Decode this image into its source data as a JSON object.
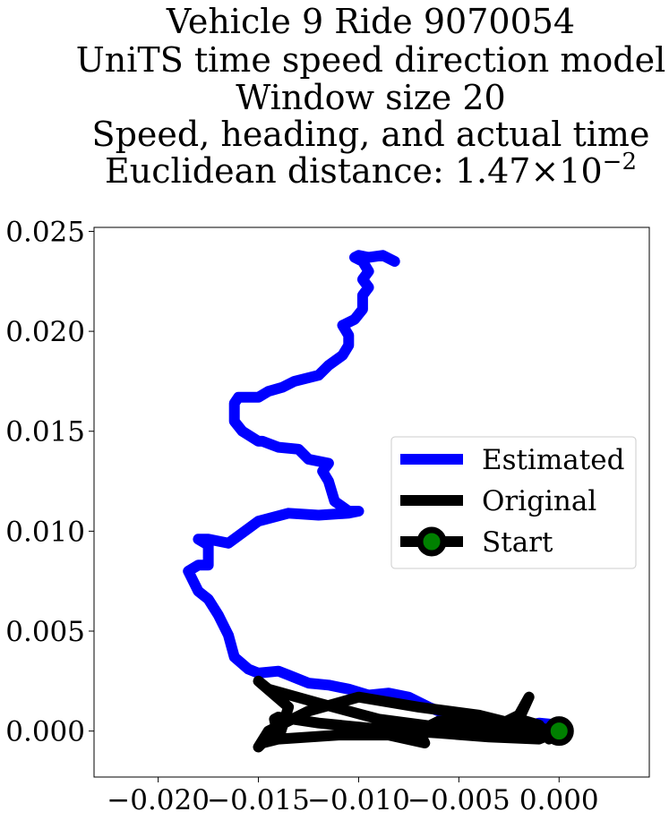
{
  "chart_data": {
    "type": "line",
    "title_lines": [
      "Vehicle 9 Ride 9070054",
      "UniTS time speed direction model",
      "Window size 20",
      "Speed, heading, and actual time"
    ],
    "title_distance": {
      "prefix": "Euclidean distance: ",
      "mantissa": "1.47",
      "times": "×",
      "base": "10",
      "exponent": "−2"
    },
    "xlabel": "",
    "ylabel": "",
    "xlim": [
      -0.0232,
      0.0045
    ],
    "ylim": [
      -0.0023,
      0.0252
    ],
    "x_ticks": [
      {
        "value": -0.02,
        "label": "−0.020"
      },
      {
        "value": -0.015,
        "label": "−0.015"
      },
      {
        "value": -0.01,
        "label": "−0.010"
      },
      {
        "value": -0.005,
        "label": "−0.005"
      },
      {
        "value": 0.0,
        "label": "0.000"
      }
    ],
    "y_ticks": [
      {
        "value": 0.0,
        "label": "0.000"
      },
      {
        "value": 0.005,
        "label": "0.005"
      },
      {
        "value": 0.01,
        "label": "0.010"
      },
      {
        "value": 0.015,
        "label": "0.015"
      },
      {
        "value": 0.02,
        "label": "0.020"
      },
      {
        "value": 0.025,
        "label": "0.025"
      }
    ],
    "grid": false,
    "legend_position": "center-right",
    "series": [
      {
        "name": "Estimated",
        "color": "#0000ff",
        "x": [
          0.0,
          -0.001,
          -0.002,
          -0.004,
          -0.0055,
          -0.0065,
          -0.0075,
          -0.0085,
          -0.0095,
          -0.0105,
          -0.0115,
          -0.0125,
          -0.0135,
          -0.014,
          -0.015,
          -0.0155,
          -0.0162,
          -0.0165,
          -0.017,
          -0.0175,
          -0.018,
          -0.0185,
          -0.018,
          -0.0175,
          -0.0175,
          -0.018,
          -0.0175,
          -0.0165,
          -0.015,
          -0.0135,
          -0.012,
          -0.0105,
          -0.01,
          -0.0105,
          -0.0112,
          -0.0115,
          -0.0118,
          -0.0115,
          -0.0125,
          -0.013,
          -0.014,
          -0.0148,
          -0.015,
          -0.0158,
          -0.0162,
          -0.0162,
          -0.016,
          -0.015,
          -0.0145,
          -0.0138,
          -0.0132,
          -0.012,
          -0.0115,
          -0.0108,
          -0.0105,
          -0.0105,
          -0.0108,
          -0.0102,
          -0.0098,
          -0.0098,
          -0.0095,
          -0.0098,
          -0.0095,
          -0.0098,
          -0.0102,
          -0.01,
          -0.0095,
          -0.0088,
          -0.0082
        ],
        "y": [
          0.0003,
          0.0004,
          0.0002,
          0.0006,
          0.0008,
          0.0012,
          0.0017,
          0.0019,
          0.0018,
          0.0021,
          0.0023,
          0.0024,
          0.0028,
          0.003,
          0.0029,
          0.0031,
          0.0037,
          0.0048,
          0.0058,
          0.0066,
          0.007,
          0.008,
          0.0083,
          0.0083,
          0.0093,
          0.0096,
          0.0096,
          0.0094,
          0.0105,
          0.0109,
          0.0108,
          0.0109,
          0.011,
          0.011,
          0.0115,
          0.0125,
          0.013,
          0.0134,
          0.0136,
          0.0141,
          0.0142,
          0.0145,
          0.0145,
          0.015,
          0.0155,
          0.0164,
          0.0167,
          0.0167,
          0.017,
          0.0172,
          0.0175,
          0.0178,
          0.0183,
          0.0188,
          0.0193,
          0.0198,
          0.0203,
          0.0206,
          0.0211,
          0.0218,
          0.0222,
          0.0226,
          0.023,
          0.0235,
          0.0237,
          0.0238,
          0.0237,
          0.0238,
          0.0235
        ]
      },
      {
        "name": "Original",
        "color": "#000000",
        "x": [
          0.0,
          -0.002,
          -0.004,
          -0.007,
          -0.01,
          -0.0125,
          -0.0145,
          -0.015,
          -0.0148,
          -0.014,
          -0.0135,
          -0.015,
          -0.0145,
          -0.012,
          -0.009,
          -0.006,
          -0.003,
          -0.001,
          0.0,
          -0.0005,
          -0.001,
          -0.002,
          -0.0015,
          -0.002,
          -0.003,
          -0.0045,
          -0.006,
          -0.007,
          -0.0067,
          -0.0085,
          -0.011,
          -0.014,
          -0.0142,
          -0.014,
          -0.012,
          -0.009,
          -0.006,
          -0.0035,
          -0.001,
          0.0
        ],
        "y": [
          0.0,
          0.0003,
          0.0008,
          0.0012,
          0.0017,
          0.001,
          0.0,
          -0.0008,
          -0.0006,
          -0.0004,
          0.0012,
          0.0025,
          0.0021,
          0.0014,
          0.0006,
          0.0002,
          0.0001,
          0.0,
          -0.0002,
          -0.0004,
          0.0003,
          0.0006,
          0.0017,
          0.0008,
          0.0003,
          0.0005,
          0.0005,
          0.0,
          -0.0006,
          -0.0002,
          -0.0002,
          -0.0004,
          0.0006,
          0.0007,
          0.0004,
          0.0001,
          -0.0001,
          -0.0003,
          -0.0004,
          0.0
        ]
      }
    ],
    "start_point": {
      "x": 0.0,
      "y": 0.0,
      "marker_color": "#008000",
      "edge_color": "#000000"
    },
    "legend": [
      {
        "label": "Estimated",
        "color": "#0000ff",
        "marker": false
      },
      {
        "label": "Original",
        "color": "#000000",
        "marker": false
      },
      {
        "label": "Start",
        "color": "#000000",
        "marker": true,
        "marker_color": "#008000"
      }
    ]
  }
}
